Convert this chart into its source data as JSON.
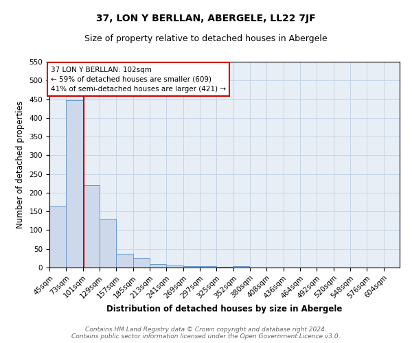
{
  "title": "37, LON Y BERLLAN, ABERGELE, LL22 7JF",
  "subtitle": "Size of property relative to detached houses in Abergele",
  "xlabel": "Distribution of detached houses by size in Abergele",
  "ylabel": "Number of detached properties",
  "bar_color": "#cdd9ea",
  "bar_edge_color": "#6699cc",
  "grid_color": "#c5d5e5",
  "background_color": "#e8eef5",
  "bin_labels": [
    "45sqm",
    "73sqm",
    "101sqm",
    "129sqm",
    "157sqm",
    "185sqm",
    "213sqm",
    "241sqm",
    "269sqm",
    "297sqm",
    "325sqm",
    "352sqm",
    "380sqm",
    "408sqm",
    "436sqm",
    "464sqm",
    "492sqm",
    "520sqm",
    "548sqm",
    "576sqm",
    "604sqm"
  ],
  "bin_starts": [
    45,
    73,
    101,
    129,
    157,
    185,
    213,
    241,
    269,
    297,
    325,
    352,
    380,
    408,
    436,
    464,
    492,
    520,
    548,
    576
  ],
  "bin_width": 28,
  "bar_heights": [
    165,
    447,
    220,
    130,
    36,
    25,
    10,
    5,
    3,
    3,
    1,
    3,
    0,
    0,
    0,
    0,
    0,
    0,
    0,
    0
  ],
  "property_size": 102,
  "red_line_color": "#bb0000",
  "annotation_line1": "37 LON Y BERLLAN: 102sqm",
  "annotation_line2": "← 59% of detached houses are smaller (609)",
  "annotation_line3": "41% of semi-detached houses are larger (421) →",
  "annotation_box_color": "#ffffff",
  "annotation_box_edge": "#cc0000",
  "footer_line1": "Contains HM Land Registry data © Crown copyright and database right 2024.",
  "footer_line2": "Contains public sector information licensed under the Open Government Licence v3.0.",
  "ylim": [
    0,
    550
  ],
  "xlim_left": 45,
  "xlim_right": 632,
  "title_fontsize": 10,
  "subtitle_fontsize": 9,
  "tick_fontsize": 7.5,
  "label_fontsize": 8.5,
  "footer_fontsize": 6.5
}
